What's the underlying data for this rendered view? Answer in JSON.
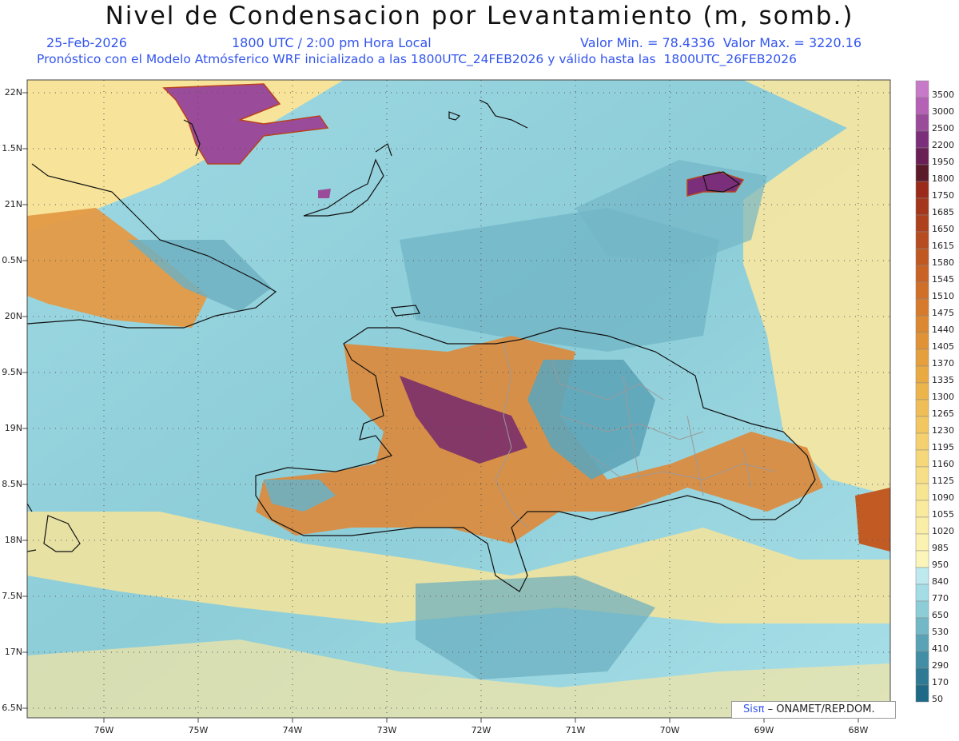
{
  "header": {
    "title": "Nivel de Condensacion por Levantamiento (m, somb.)",
    "date": "25-Feb-2026",
    "time": "1800 UTC / 2:00 pm Hora Local",
    "min_max": "Valor Min. = 78.4336  Valor Max. = 3220.16",
    "model_line": "Pronóstico con el Modelo Atmósferico WRF inicializado a las 1800UTC_24FEB2026 y válido hasta las  1800UTC_26FEB2026"
  },
  "axes": {
    "lat_labels": [
      "22N",
      "1.5N",
      "21N",
      "0.5N",
      "20N",
      "9.5N",
      "19N",
      "8.5N",
      "18N",
      "7.5N",
      "17N",
      "6.5N"
    ],
    "lon_labels": [
      "76W",
      "75W",
      "74W",
      "73W",
      "72W",
      "71W",
      "70W",
      "69W",
      "68W"
    ]
  },
  "colorbar": {
    "levels": [
      "3500",
      "3000",
      "2500",
      "2200",
      "1950",
      "1800",
      "1750",
      "1685",
      "1650",
      "1615",
      "1580",
      "1545",
      "1510",
      "1475",
      "1440",
      "1405",
      "1370",
      "1335",
      "1300",
      "1265",
      "1230",
      "1195",
      "1160",
      "1125",
      "1090",
      "1055",
      "1020",
      "985",
      "950",
      "840",
      "770",
      "650",
      "530",
      "410",
      "290",
      "170",
      "50"
    ],
    "colors": [
      "#c77ac7",
      "#b561b5",
      "#9a4b9a",
      "#7b2f7b",
      "#6a1f55",
      "#5a1a2a",
      "#9a2b1a",
      "#a3361b",
      "#ad411d",
      "#b64c1f",
      "#c05822",
      "#c96325",
      "#d06f28",
      "#d67b2c",
      "#dc8731",
      "#e09336",
      "#e59f3c",
      "#e9aa44",
      "#ecb54c",
      "#efbe56",
      "#f2c762",
      "#f4d06e",
      "#f6d87a",
      "#f7df87",
      "#f8e592",
      "#f9ea9d",
      "#faeea7",
      "#fbf2b1",
      "#fcf5ba",
      "#bde9ef",
      "#a4dde5",
      "#8ccdd8",
      "#72b8c7",
      "#5aa3b6",
      "#428ea5",
      "#2e7a95",
      "#1e6985"
    ]
  },
  "credit": {
    "sis": "Sisπ",
    "text": "– ONAMET/REP.DOM."
  }
}
